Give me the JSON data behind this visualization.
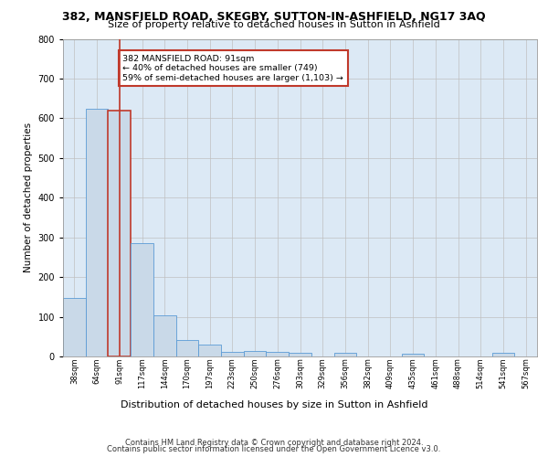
{
  "title_line1": "382, MANSFIELD ROAD, SKEGBY, SUTTON-IN-ASHFIELD, NG17 3AQ",
  "title_line2": "Size of property relative to detached houses in Sutton in Ashfield",
  "xlabel": "Distribution of detached houses by size in Sutton in Ashfield",
  "ylabel": "Number of detached properties",
  "footer_line1": "Contains HM Land Registry data © Crown copyright and database right 2024.",
  "footer_line2": "Contains public sector information licensed under the Open Government Licence v3.0.",
  "categories": [
    "38sqm",
    "64sqm",
    "91sqm",
    "117sqm",
    "144sqm",
    "170sqm",
    "197sqm",
    "223sqm",
    "250sqm",
    "276sqm",
    "303sqm",
    "329sqm",
    "356sqm",
    "382sqm",
    "409sqm",
    "435sqm",
    "461sqm",
    "488sqm",
    "514sqm",
    "541sqm",
    "567sqm"
  ],
  "values": [
    148,
    625,
    620,
    285,
    103,
    42,
    29,
    12,
    13,
    11,
    9,
    0,
    9,
    0,
    0,
    8,
    0,
    0,
    0,
    9,
    0
  ],
  "bar_color": "#c9d9e8",
  "bar_edge_color": "#5b9bd5",
  "highlight_bar_index": 2,
  "highlight_bar_edge_color": "#c0392b",
  "red_line_x": 2,
  "annotation_text": "382 MANSFIELD ROAD: 91sqm\n← 40% of detached houses are smaller (749)\n59% of semi-detached houses are larger (1,103) →",
  "annotation_box_color": "#ffffff",
  "annotation_box_edge_color": "#c0392b",
  "ylim": [
    0,
    800
  ],
  "yticks": [
    0,
    100,
    200,
    300,
    400,
    500,
    600,
    700,
    800
  ],
  "grid_color": "#c0c0c0",
  "plot_bg_color": "#dce9f5"
}
